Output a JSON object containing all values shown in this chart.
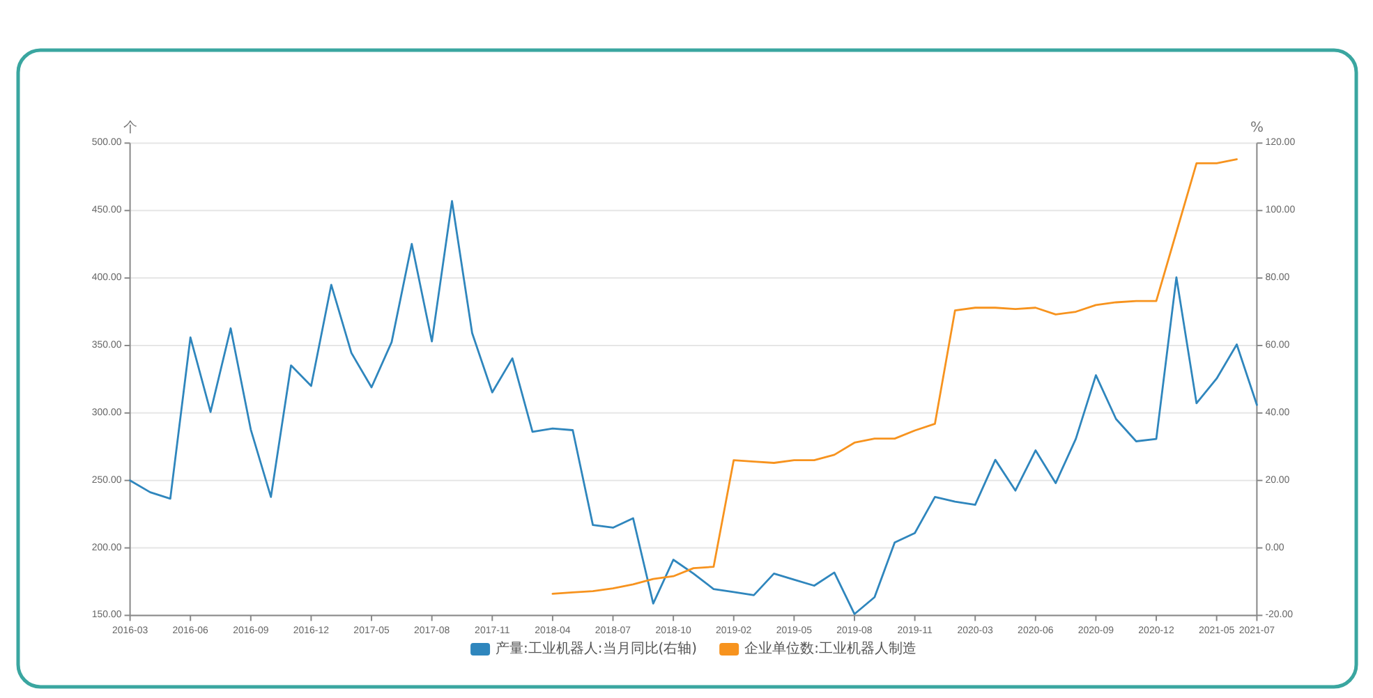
{
  "chart_data": {
    "type": "line",
    "ylabel": "个",
    "y2label": "%",
    "categories": [
      "2016-03",
      null,
      null,
      "2016-06",
      null,
      null,
      "2016-09",
      null,
      null,
      "2016-12",
      null,
      null,
      "2017-05",
      null,
      null,
      "2017-08",
      null,
      null,
      "2017-11",
      null,
      null,
      "2018-04",
      null,
      null,
      "2018-07",
      null,
      null,
      "2018-10",
      null,
      null,
      "2019-02",
      null,
      null,
      "2019-05",
      null,
      null,
      "2019-08",
      null,
      null,
      "2019-11",
      null,
      null,
      "2020-03",
      null,
      null,
      "2020-06",
      null,
      null,
      "2020-09",
      null,
      null,
      "2020-12",
      null,
      null,
      "2021-05",
      null,
      "2021-07"
    ],
    "series": [
      {
        "name": "产量:工业机器人:当月同比(右轴)",
        "color": "#2f86bd",
        "axis": "y2",
        "values": [
          20.0,
          16.5,
          14.6,
          62.4,
          40.3,
          65.1,
          35.1,
          15.1,
          54.1,
          48.0,
          78.0,
          57.8,
          47.6,
          61.0,
          90.1,
          61.2,
          102.8,
          63.7,
          46.1,
          56.2,
          34.4,
          35.4,
          34.9,
          6.8,
          6.0,
          8.8,
          -16.5,
          -3.5,
          -7.6,
          -12.2,
          -13.1,
          -14.0,
          -7.6,
          -9.4,
          -11.2,
          -7.3,
          -19.6,
          -14.6,
          1.6,
          4.4,
          15.1,
          13.7,
          12.8,
          26.1,
          17.0,
          28.9,
          19.2,
          32.3,
          51.2,
          38.2,
          31.6,
          32.3,
          80.2,
          42.9,
          50.2,
          60.3,
          42.4
        ]
      },
      {
        "name": "企业单位数:工业机器人制造",
        "color": "#f7931e",
        "values": [
          null,
          null,
          null,
          null,
          null,
          null,
          null,
          null,
          null,
          null,
          null,
          null,
          null,
          null,
          null,
          null,
          null,
          null,
          null,
          null,
          null,
          166,
          167,
          168,
          170,
          173,
          177,
          179,
          185,
          186,
          265,
          264,
          263,
          265,
          265,
          269,
          278,
          281,
          281,
          287,
          292,
          376,
          378,
          378,
          377,
          378,
          373,
          375,
          380,
          382,
          383,
          383,
          434,
          485,
          485,
          488,
          null
        ]
      }
    ],
    "ylim": [
      150,
      500
    ],
    "yticks": [
      {
        "value": 150,
        "label": "150.00"
      },
      {
        "value": 200,
        "label": "200.00"
      },
      {
        "value": 250,
        "label": "250.00"
      },
      {
        "value": 300,
        "label": "300.00"
      },
      {
        "value": 350,
        "label": "350.00"
      },
      {
        "value": 400,
        "label": "400.00"
      },
      {
        "value": 450,
        "label": "450.00"
      },
      {
        "value": 500,
        "label": "500.00"
      }
    ],
    "y2lim": [
      -20,
      120
    ],
    "y2ticks": [
      {
        "value": -20,
        "label": "-20.00"
      },
      {
        "value": 0,
        "label": "0.00"
      },
      {
        "value": 20,
        "label": "20.00"
      },
      {
        "value": 40,
        "label": "40.00"
      },
      {
        "value": 60,
        "label": "60.00"
      },
      {
        "value": 80,
        "label": "80.00"
      },
      {
        "value": 100,
        "label": "100.00"
      },
      {
        "value": 120,
        "label": "120.00"
      }
    ],
    "grid": "y",
    "legend": "bottom"
  }
}
